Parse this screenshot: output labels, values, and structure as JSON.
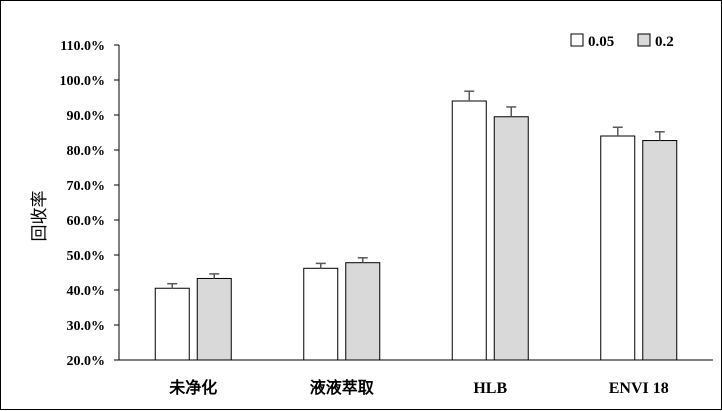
{
  "chart_data": {
    "type": "bar",
    "categories": [
      "未净化",
      "液液萃取",
      "HLB",
      "ENVI 18"
    ],
    "series": [
      {
        "name": "0.05",
        "values": [
          40.5,
          46.2,
          94.0,
          84.0
        ],
        "errors": [
          1.3,
          1.4,
          2.8,
          2.5
        ],
        "color": "#ffffff"
      },
      {
        "name": "0.2",
        "values": [
          43.3,
          47.8,
          89.5,
          82.7
        ],
        "errors": [
          1.3,
          1.4,
          2.8,
          2.5
        ],
        "color": "#d9d9d9"
      }
    ],
    "ylabel": "回收率",
    "ylim": [
      20,
      110
    ],
    "yticks": [
      "20.0%",
      "30.0%",
      "40.0%",
      "50.0%",
      "60.0%",
      "70.0%",
      "80.0%",
      "90.0%",
      "100.0%",
      "110.0%"
    ],
    "grid": false,
    "legend_position": "top-right",
    "colors": {
      "outline": "#000000",
      "error_bar": "#595959"
    }
  }
}
